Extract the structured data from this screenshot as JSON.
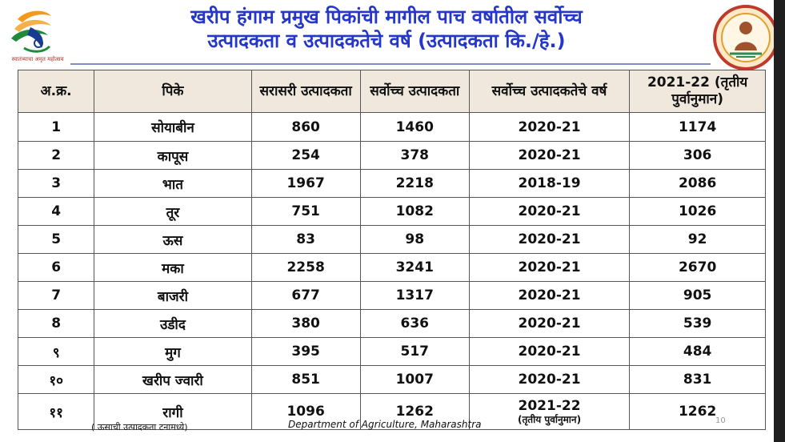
{
  "title_line1": "खरीप हंगाम प्रमुख पिकांची मागील पाच वर्षातील सर्वोच्च",
  "title_line2": "उत्पादकता व उत्पादकतेचे वर्ष (उत्पादकता कि./हे.)",
  "logo_left_caption": "स्वातंत्र्याचा अमृत महोत्सव",
  "headers": [
    "अ.क्र.",
    "पिके",
    "सरासरी उत्पादकता",
    "सर्वोच्च उत्पादकता",
    "सर्वोच्च उत्पादकतेचे वर्ष",
    "2021-22 (तृतीय पुर्वानुमान)"
  ],
  "rows": [
    {
      "no": "1",
      "crop": "सोयाबीन",
      "avg": "860",
      "max": "1460",
      "year": "2020-21",
      "est": "1174"
    },
    {
      "no": "2",
      "crop": "कापूस",
      "avg": "254",
      "max": "378",
      "year": "2020-21",
      "est": "306"
    },
    {
      "no": "3",
      "crop": "भात",
      "avg": "1967",
      "max": "2218",
      "year": "2018-19",
      "est": "2086"
    },
    {
      "no": "4",
      "crop": "तूर",
      "avg": "751",
      "max": "1082",
      "year": "2020-21",
      "est": "1026"
    },
    {
      "no": "5",
      "crop": "ऊस",
      "avg": "83",
      "max": "98",
      "year": "2020-21",
      "est": "92"
    },
    {
      "no": "6",
      "crop": "मका",
      "avg": "2258",
      "max": "3241",
      "year": "2020-21",
      "est": "2670"
    },
    {
      "no": "7",
      "crop": "बाजरी",
      "avg": "677",
      "max": "1317",
      "year": "2020-21",
      "est": "905"
    },
    {
      "no": "8",
      "crop": "उडीद",
      "avg": "380",
      "max": "636",
      "year": "2020-21",
      "est": "539"
    },
    {
      "no": "९",
      "crop": "मुग",
      "avg": "395",
      "max": "517",
      "year": "2020-21",
      "est": "484"
    },
    {
      "no": "१०",
      "crop": "खरीप ज्वारी",
      "avg": "851",
      "max": "1007",
      "year": "2020-21",
      "est": "831"
    },
    {
      "no": "११",
      "crop": "रागी",
      "avg": "1096",
      "max": "1262",
      "year": "2021-22",
      "year_note": "(तृतीय पुर्वानुमान)",
      "est": "1262"
    }
  ],
  "footnote": "( ऊसाची उत्पादकता टनामध्ये)",
  "department": "Department of Agriculture, Maharashtra",
  "page_number": "10",
  "colors": {
    "title": "#2437c9",
    "header_bg": "#f1e8dd",
    "right_bar": "#1f1f1f"
  }
}
